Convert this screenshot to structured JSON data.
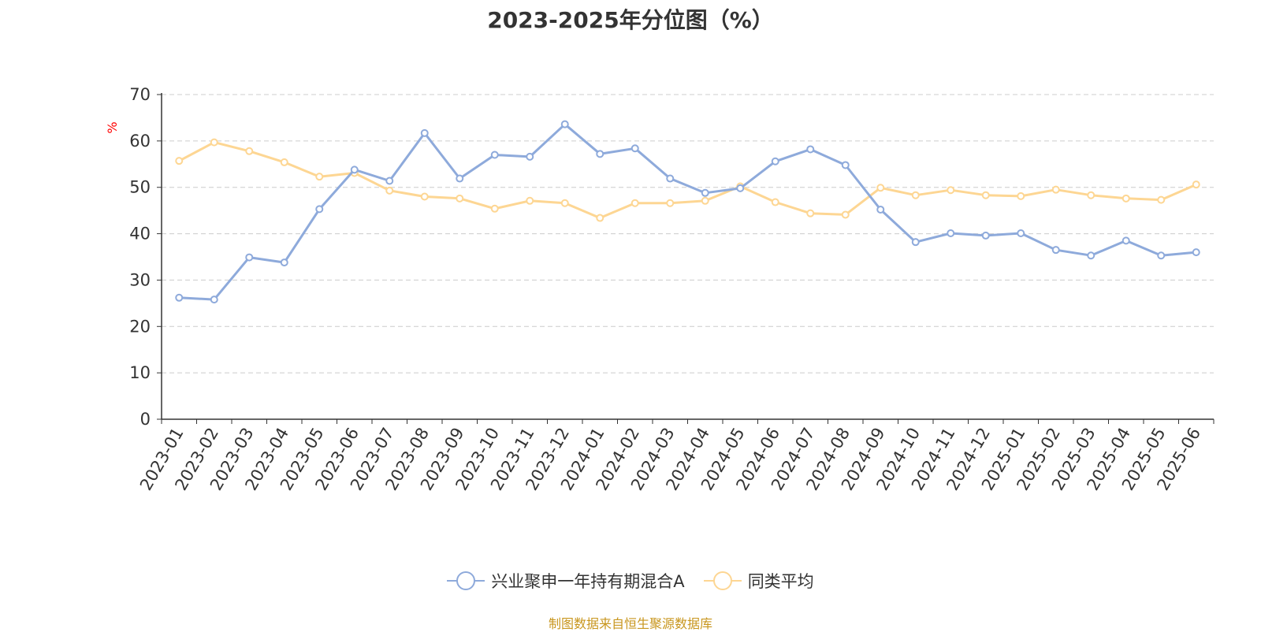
{
  "source_note": "制图数据来自恒生聚源数据库",
  "colors": {
    "series_a": "#8eaadb",
    "series_b": "#fdd693",
    "axis": "#333333",
    "grid": "#cccccc",
    "unit": "#ff0000"
  },
  "chart_data": {
    "type": "line",
    "title": "2023-2025年分位图（%）",
    "ylabel": "%",
    "xlabel": "",
    "ylim": [
      0,
      70
    ],
    "yticks": [
      0,
      10,
      20,
      30,
      40,
      50,
      60,
      70
    ],
    "grid": "horizontal dashed",
    "legend_position": "bottom-center",
    "categories": [
      "2023-01",
      "2023-02",
      "2023-03",
      "2023-04",
      "2023-05",
      "2023-06",
      "2023-07",
      "2023-08",
      "2023-09",
      "2023-10",
      "2023-11",
      "2023-12",
      "2024-01",
      "2024-02",
      "2024-03",
      "2024-04",
      "2024-05",
      "2024-06",
      "2024-07",
      "2024-08",
      "2024-09",
      "2024-10",
      "2024-11",
      "2024-12",
      "2025-01",
      "2025-02",
      "2025-03",
      "2025-04",
      "2025-05",
      "2025-06"
    ],
    "series": [
      {
        "name": "兴业聚申一年持有期混合A",
        "values": [
          26.2,
          25.8,
          34.9,
          33.8,
          45.3,
          53.8,
          51.4,
          61.7,
          51.9,
          57.0,
          56.6,
          63.6,
          57.2,
          58.4,
          51.9,
          48.8,
          49.8,
          55.6,
          58.2,
          54.8,
          45.2,
          38.2,
          40.1,
          39.6,
          40.1,
          36.5,
          35.3,
          38.5,
          35.3,
          36.0
        ]
      },
      {
        "name": "同类平均",
        "values": [
          55.7,
          59.7,
          57.8,
          55.4,
          52.3,
          53.1,
          49.3,
          48.0,
          47.6,
          45.4,
          47.1,
          46.6,
          43.4,
          46.6,
          46.6,
          47.1,
          50.2,
          46.8,
          44.4,
          44.1,
          49.9,
          48.3,
          49.4,
          48.3,
          48.1,
          49.5,
          48.3,
          47.6,
          47.3,
          50.6
        ]
      }
    ]
  }
}
